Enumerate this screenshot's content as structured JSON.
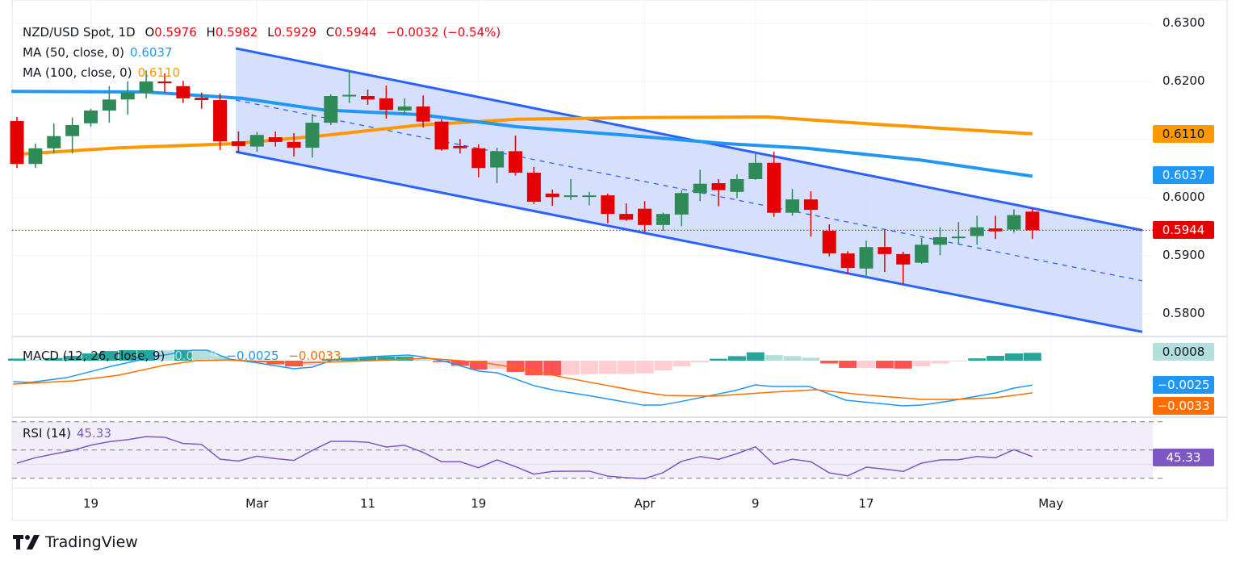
{
  "header": {
    "symbol": "NZD/USD Spot, 1D",
    "o_label": "O",
    "open": "0.5976",
    "h_label": "H",
    "high": "0.5982",
    "l_label": "L",
    "low": "0.5929",
    "c_label": "C",
    "close": "0.5944",
    "change": "−0.0032 (−0.54%)"
  },
  "ma50": {
    "label": "MA (50, close, 0)",
    "value": "0.6037"
  },
  "ma100": {
    "label": "MA (100, close, 0)",
    "value": "0.6110"
  },
  "macd": {
    "label": "MACD (12, 26, close, 9)",
    "hist": "0.0008",
    "macd": "−0.0025",
    "signal": "−0.0033"
  },
  "rsi": {
    "label": "RSI (14)",
    "value": "45.33"
  },
  "price_axis": [
    {
      "label": "0.6300",
      "value": 0.63
    },
    {
      "label": "0.6200",
      "value": 0.62
    },
    {
      "label": "0.6000",
      "value": 0.6
    },
    {
      "label": "0.5900",
      "value": 0.59
    },
    {
      "label": "0.5800",
      "value": 0.58
    }
  ],
  "price_badges": {
    "ma100": "0.6110",
    "ma50": "0.6037",
    "last": "0.5944"
  },
  "macd_badges": {
    "hist": "0.0008",
    "macd": "−0.0025",
    "signal": "−0.0033"
  },
  "rsi_badge": "45.33",
  "x_axis": [
    {
      "label": "19",
      "index": 4
    },
    {
      "label": "Mar",
      "index": 13
    },
    {
      "label": "11",
      "index": 19
    },
    {
      "label": "19",
      "index": 25
    },
    {
      "label": "Apr",
      "index": 34
    },
    {
      "label": "9",
      "index": 40
    },
    {
      "label": "17",
      "index": 46
    },
    {
      "label": "May",
      "index": 56
    }
  ],
  "branding": "TradingView",
  "colors": {
    "up": "#2e8b57",
    "down": "#e50000",
    "ma50": "#2196f3",
    "ma100": "#ff9800",
    "channel": "#2962ff",
    "channel_fill": "#d1dcfb",
    "macd": "#2196f3",
    "signal": "#ff6d00",
    "hist_up_strong": "#26a69a",
    "hist_up_weak": "#b2dfdb",
    "hist_down_strong": "#ff5252",
    "hist_down_weak": "#ffcdd2",
    "rsi": "#7e57c2",
    "rsi_band": "#f1eef9",
    "last_price": "#e50000"
  },
  "chart_data": {
    "type": "candlestick",
    "title": "NZD/USD Spot, 1D",
    "ylim": [
      0.576,
      0.631
    ],
    "candles_ohlc": [
      [
        0.6132,
        0.6139,
        0.6051,
        0.6058
      ],
      [
        0.6058,
        0.6093,
        0.6051,
        0.6085
      ],
      [
        0.6085,
        0.6128,
        0.6076,
        0.6106
      ],
      [
        0.6106,
        0.6138,
        0.6076,
        0.6125
      ],
      [
        0.6128,
        0.6153,
        0.6122,
        0.615
      ],
      [
        0.615,
        0.6192,
        0.6129,
        0.6169
      ],
      [
        0.6169,
        0.62,
        0.6143,
        0.6181
      ],
      [
        0.6181,
        0.6219,
        0.6171,
        0.62
      ],
      [
        0.62,
        0.6214,
        0.6181,
        0.6197
      ],
      [
        0.6192,
        0.6201,
        0.6163,
        0.6171
      ],
      [
        0.6172,
        0.6181,
        0.6153,
        0.6168
      ],
      [
        0.6168,
        0.6179,
        0.6082,
        0.6097
      ],
      [
        0.6097,
        0.6114,
        0.6078,
        0.6089
      ],
      [
        0.6088,
        0.6113,
        0.6079,
        0.6108
      ],
      [
        0.6104,
        0.6114,
        0.6088,
        0.6096
      ],
      [
        0.6096,
        0.6111,
        0.6071,
        0.6086
      ],
      [
        0.6086,
        0.6144,
        0.6069,
        0.6129
      ],
      [
        0.6129,
        0.6178,
        0.6125,
        0.6175
      ],
      [
        0.6175,
        0.6219,
        0.6163,
        0.6177
      ],
      [
        0.6175,
        0.6186,
        0.616,
        0.6169
      ],
      [
        0.6171,
        0.6193,
        0.6136,
        0.6151
      ],
      [
        0.615,
        0.6171,
        0.6142,
        0.6157
      ],
      [
        0.6157,
        0.6176,
        0.6121,
        0.6131
      ],
      [
        0.6131,
        0.6135,
        0.6081,
        0.6083
      ],
      [
        0.6089,
        0.6101,
        0.6076,
        0.6085
      ],
      [
        0.6085,
        0.6092,
        0.6035,
        0.6051
      ],
      [
        0.6052,
        0.6086,
        0.6025,
        0.608
      ],
      [
        0.608,
        0.6107,
        0.6038,
        0.6043
      ],
      [
        0.6043,
        0.6053,
        0.5989,
        0.5993
      ],
      [
        0.6007,
        0.6014,
        0.5986,
        0.6001
      ],
      [
        0.6003,
        0.6032,
        0.5996,
        0.6004
      ],
      [
        0.6003,
        0.601,
        0.5987,
        0.6004
      ],
      [
        0.6004,
        0.6007,
        0.5956,
        0.5972
      ],
      [
        0.5972,
        0.599,
        0.596,
        0.5962
      ],
      [
        0.5981,
        0.5994,
        0.594,
        0.5953
      ],
      [
        0.5953,
        0.5974,
        0.5943,
        0.5972
      ],
      [
        0.5971,
        0.6013,
        0.5951,
        0.6008
      ],
      [
        0.6008,
        0.6048,
        0.5994,
        0.6024
      ],
      [
        0.6025,
        0.6032,
        0.5985,
        0.6013
      ],
      [
        0.601,
        0.604,
        0.5999,
        0.6032
      ],
      [
        0.6032,
        0.6076,
        0.6031,
        0.606
      ],
      [
        0.606,
        0.6079,
        0.5967,
        0.5974
      ],
      [
        0.5974,
        0.6015,
        0.5969,
        0.5997
      ],
      [
        0.5997,
        0.6011,
        0.5933,
        0.5979
      ],
      [
        0.5943,
        0.5954,
        0.5899,
        0.5904
      ],
      [
        0.5904,
        0.5908,
        0.5869,
        0.5879
      ],
      [
        0.5878,
        0.5926,
        0.5861,
        0.5915
      ],
      [
        0.5915,
        0.5944,
        0.5872,
        0.5903
      ],
      [
        0.5903,
        0.5907,
        0.5851,
        0.5885
      ],
      [
        0.5888,
        0.5931,
        0.5886,
        0.5919
      ],
      [
        0.5919,
        0.5949,
        0.5901,
        0.5932
      ],
      [
        0.5932,
        0.5958,
        0.5919,
        0.5933
      ],
      [
        0.5934,
        0.5969,
        0.5919,
        0.5949
      ],
      [
        0.5947,
        0.5969,
        0.5929,
        0.5942
      ],
      [
        0.5945,
        0.598,
        0.594,
        0.597
      ],
      [
        0.5976,
        0.5982,
        0.5929,
        0.5944
      ]
    ],
    "last_price": 0.5944,
    "ma50_points": [
      [
        -0.3,
        0.6183
      ],
      [
        7,
        0.6182
      ],
      [
        12.2,
        0.6171
      ],
      [
        16.6,
        0.6151
      ],
      [
        21.8,
        0.6143
      ],
      [
        27.1,
        0.6122
      ],
      [
        33.2,
        0.6107
      ],
      [
        38.4,
        0.6093
      ],
      [
        42.8,
        0.6085
      ],
      [
        48.9,
        0.6065
      ],
      [
        55,
        0.6037
      ]
    ],
    "ma100_points": [
      [
        -0.3,
        0.6074
      ],
      [
        5.6,
        0.6086
      ],
      [
        11.8,
        0.6093
      ],
      [
        16.6,
        0.6107
      ],
      [
        21.8,
        0.6125
      ],
      [
        27.1,
        0.6135
      ],
      [
        34.1,
        0.6138
      ],
      [
        40.6,
        0.6139
      ],
      [
        47.2,
        0.6125
      ],
      [
        55,
        0.611
      ]
    ],
    "channel": {
      "start_index": 11.85,
      "end_index": 60.95,
      "upper": [
        0.6257,
        0.5944
      ],
      "middle": [
        0.6168,
        0.5857
      ],
      "lower": [
        0.6079,
        0.5769
      ]
    },
    "macd_points": [
      [
        -0.2,
        -0.00215
      ],
      [
        0.7,
        -0.00223
      ],
      [
        2.7,
        -0.00174
      ],
      [
        5.1,
        -0.00058
      ],
      [
        7.5,
        0.00041
      ],
      [
        9.5,
        0.00107
      ],
      [
        10.3,
        0.00107
      ],
      [
        11.5,
        0.00017
      ],
      [
        13.1,
        -0.00025
      ],
      [
        15,
        -0.00083
      ],
      [
        16,
        -0.00066
      ],
      [
        17.1,
        8e-05
      ],
      [
        19.2,
        0.00041
      ],
      [
        21.2,
        0.00058
      ],
      [
        21.9,
        0.00041
      ],
      [
        23.2,
        -8e-05
      ],
      [
        25,
        -0.00107
      ],
      [
        26,
        -0.00124
      ],
      [
        26.8,
        -0.00174
      ],
      [
        28,
        -0.00256
      ],
      [
        29.2,
        -0.00306
      ],
      [
        30.9,
        -0.00355
      ],
      [
        33.9,
        -0.00455
      ],
      [
        34.9,
        -0.00455
      ],
      [
        35.9,
        -0.00421
      ],
      [
        38.9,
        -0.00306
      ],
      [
        40,
        -0.00248
      ],
      [
        40.9,
        -0.00264
      ],
      [
        42.9,
        -0.00264
      ],
      [
        44.9,
        -0.00405
      ],
      [
        48,
        -0.00463
      ],
      [
        49,
        -0.00455
      ],
      [
        50.5,
        -0.00413
      ],
      [
        52,
        -0.00364
      ],
      [
        53,
        -0.00331
      ],
      [
        54,
        -0.00281
      ],
      [
        55,
        -0.0025
      ]
    ],
    "signal_points": [
      [
        -0.2,
        -0.0024
      ],
      [
        3.1,
        -0.00207
      ],
      [
        5.5,
        -0.00149
      ],
      [
        7.9,
        -0.0005
      ],
      [
        9.7,
        0
      ],
      [
        11.5,
        8e-05
      ],
      [
        15.1,
        -0.00025
      ],
      [
        19.2,
        0
      ],
      [
        22.2,
        0.00025
      ],
      [
        25.2,
        -0.00017
      ],
      [
        27.6,
        -0.00091
      ],
      [
        29.7,
        -0.00174
      ],
      [
        33.9,
        -0.00322
      ],
      [
        35.1,
        -0.00355
      ],
      [
        37.7,
        -0.00364
      ],
      [
        40.9,
        -0.00322
      ],
      [
        43.3,
        -0.00298
      ],
      [
        45.7,
        -0.00347
      ],
      [
        49,
        -0.00397
      ],
      [
        50.8,
        -0.00397
      ],
      [
        53,
        -0.0038
      ],
      [
        55,
        -0.0033
      ]
    ],
    "rsi_values": [
      40.7,
      44.5,
      47.2,
      49.7,
      53.4,
      55.9,
      57.3,
      59.5,
      59.0,
      54.6,
      54.0,
      43.5,
      42.2,
      45.6,
      43.9,
      42.6,
      49.7,
      56.1,
      56.1,
      55.5,
      52.1,
      53.3,
      48.3,
      41.7,
      41.7,
      37.4,
      43.0,
      38.2,
      32.9,
      34.8,
      35.0,
      35.0,
      31.5,
      30.4,
      29.7,
      34.0,
      42.0,
      45.3,
      43.4,
      47.4,
      52.3,
      39.9,
      43.5,
      41.7,
      33.8,
      31.7,
      37.8,
      36.5,
      34.8,
      40.7,
      43.0,
      43.1,
      45.4,
      44.5,
      50.2,
      45.33
    ],
    "rsi_levels": [
      70,
      50,
      30
    ]
  }
}
